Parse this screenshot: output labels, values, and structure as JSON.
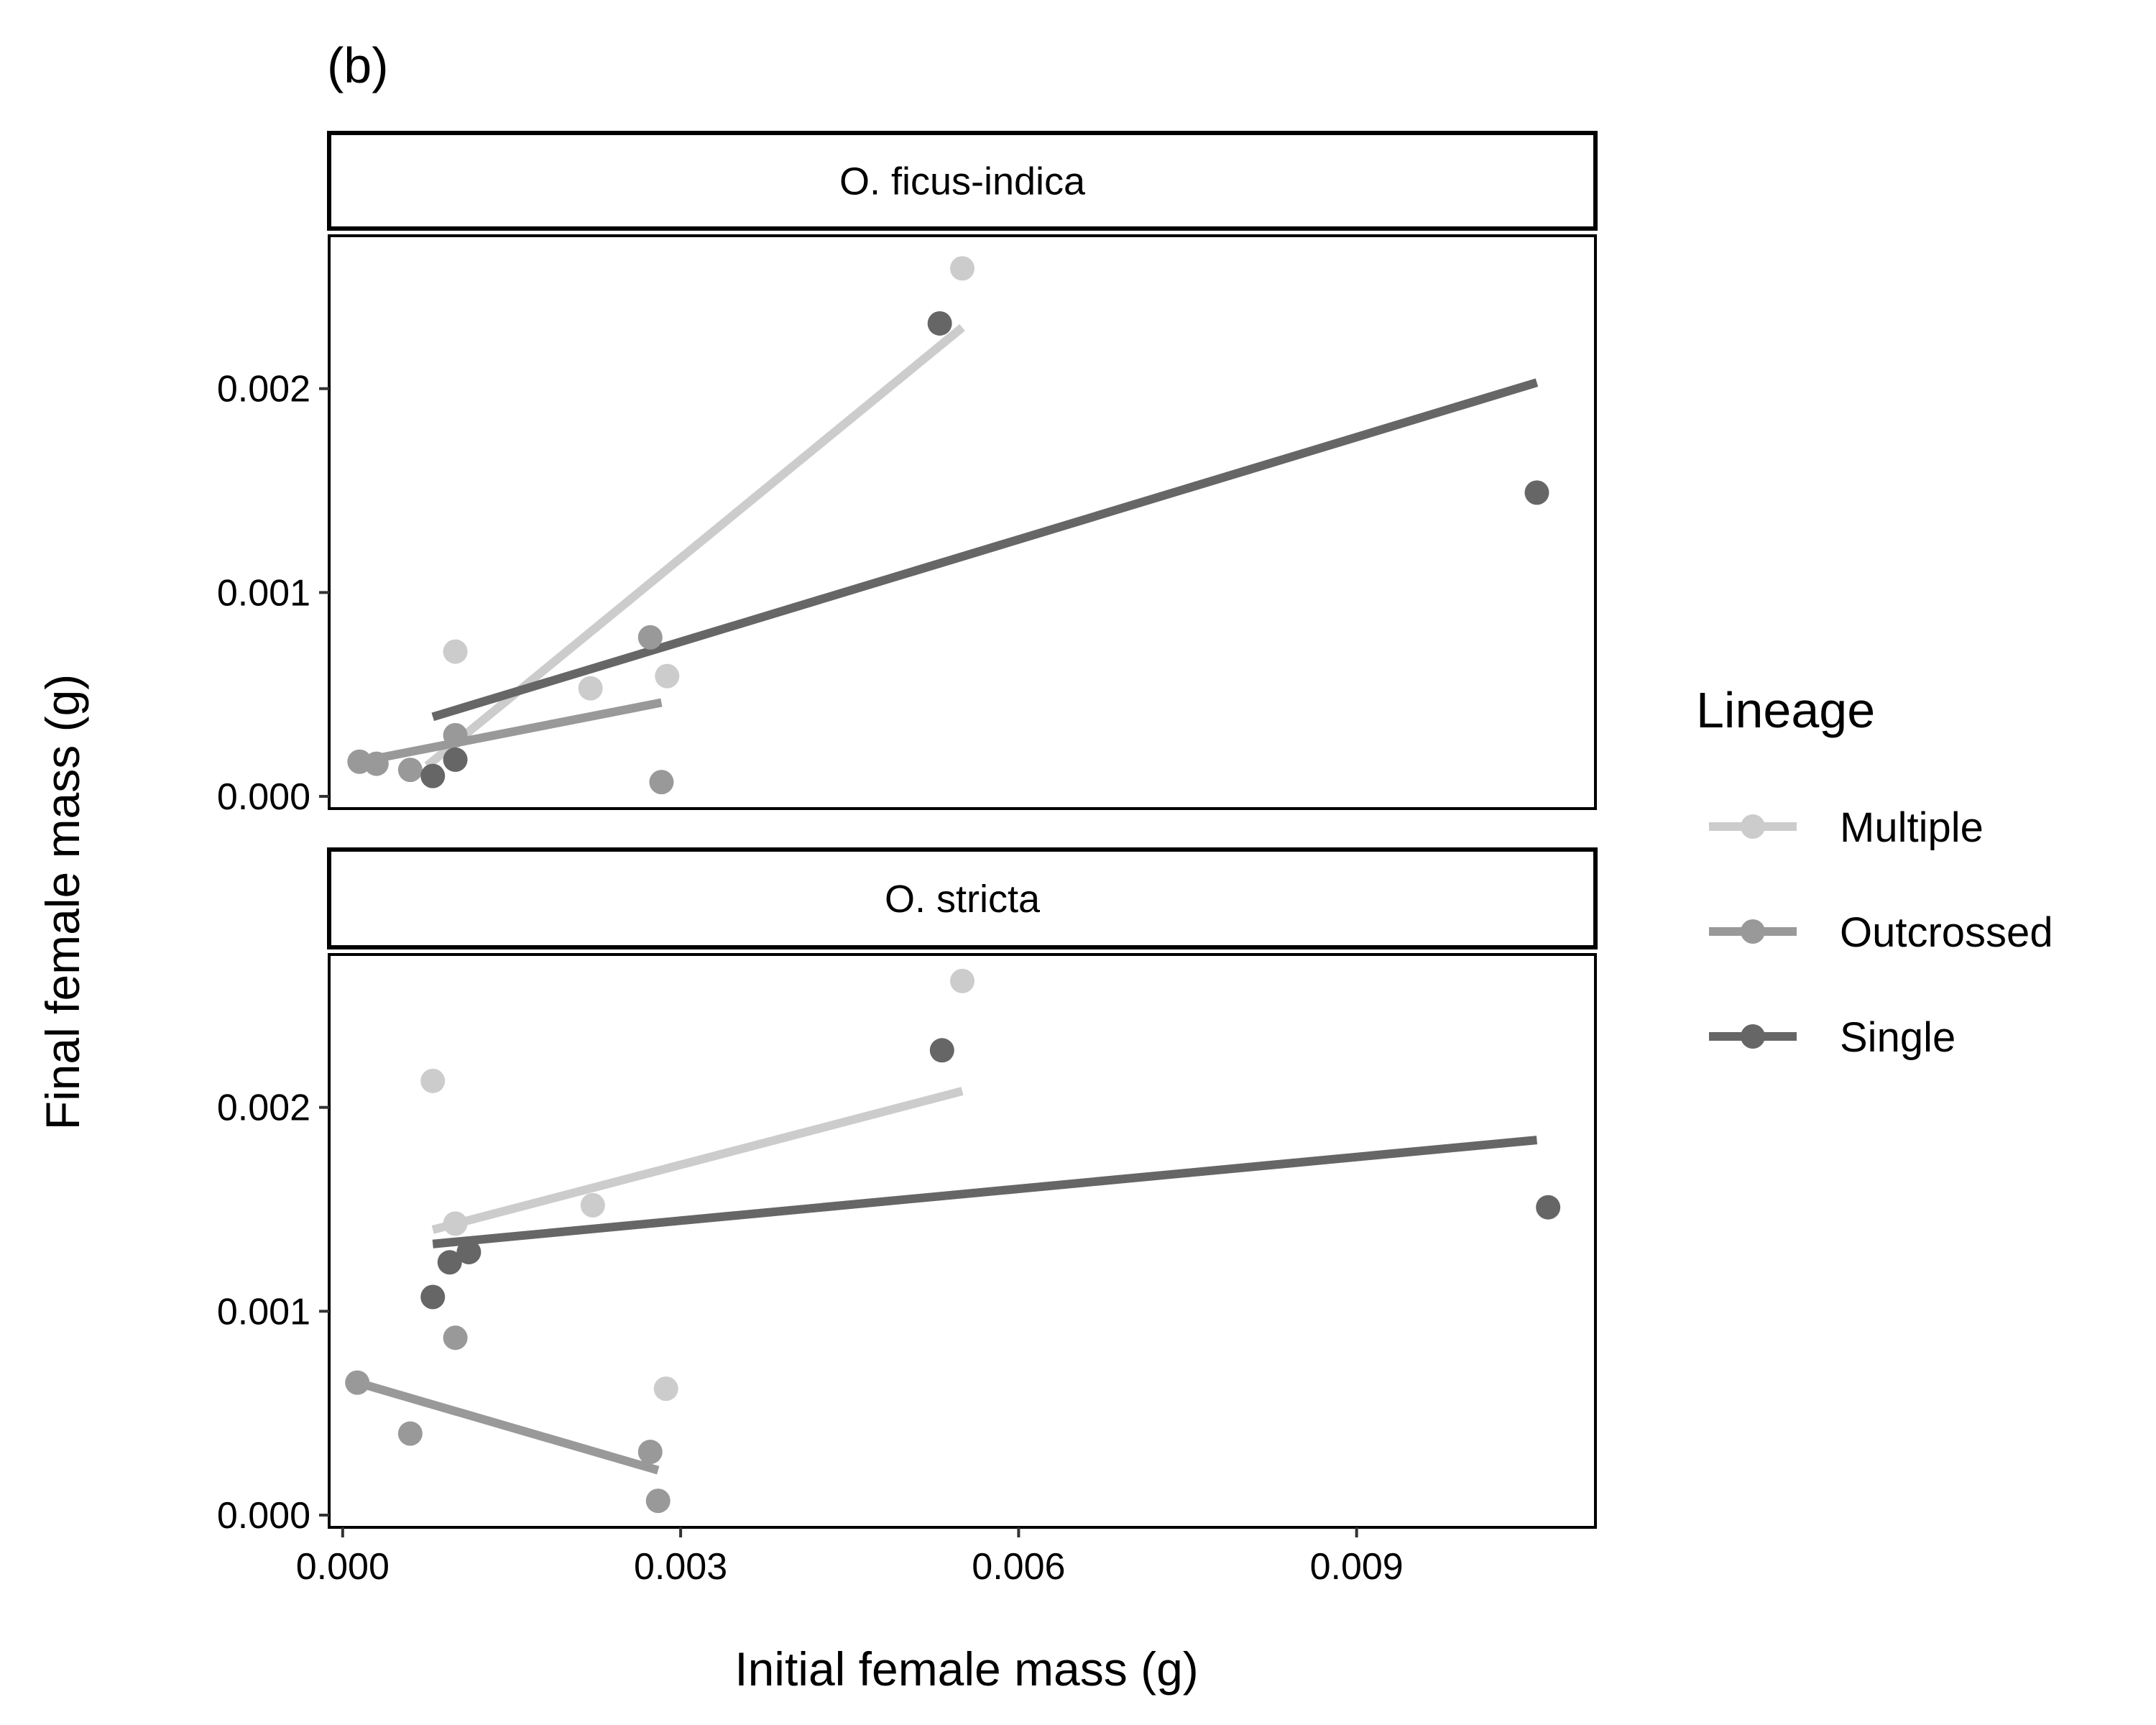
{
  "chart_data": {
    "type": "scatter",
    "tag": "(b)",
    "xlabel": "Initial female mass (g)",
    "ylabel": "Final female mass (g)",
    "xlim": [
      -0.00012,
      0.01112
    ],
    "ylim": [
      -6e-05,
      0.00275
    ],
    "xticks": [
      0.0,
      0.003,
      0.006,
      0.009
    ],
    "xtick_labels": [
      "0.000",
      "0.003",
      "0.006",
      "0.009"
    ],
    "yticks": [
      0.0,
      0.001,
      0.002
    ],
    "ytick_labels": [
      "0.000",
      "0.001",
      "0.002"
    ],
    "grid": false,
    "legend": {
      "title": "Lineage",
      "position": "right",
      "items": [
        {
          "label": "Multiple",
          "color": "#cccccc"
        },
        {
          "label": "Outcrossed",
          "color": "#999999"
        },
        {
          "label": "Single",
          "color": "#666666"
        }
      ]
    },
    "panels": [
      {
        "strip": "O. ficus-indica",
        "series": [
          {
            "name": "Multiple",
            "color": "#cccccc",
            "points": [
              [
                0.001,
                0.00071
              ],
              [
                0.0022,
                0.00053
              ],
              [
                0.00288,
                0.00059
              ],
              [
                0.0055,
                0.00259
              ]
            ],
            "fit": [
              [
                0.00075,
                0.00015
              ],
              [
                0.0055,
                0.0023
              ]
            ]
          },
          {
            "name": "Outcrossed",
            "color": "#999999",
            "points": [
              [
                0.00015,
                0.00017
              ],
              [
                0.0003,
                0.00016
              ],
              [
                0.0006,
                0.00013
              ],
              [
                0.001,
                0.0003
              ],
              [
                0.00273,
                0.00078
              ],
              [
                0.00283,
                7e-05
              ]
            ],
            "fit": [
              [
                0.00015,
                0.00017
              ],
              [
                0.00283,
                0.00046
              ]
            ]
          },
          {
            "name": "Single",
            "color": "#666666",
            "points": [
              [
                0.0008,
                0.0001
              ],
              [
                0.001,
                0.00018
              ],
              [
                0.0053,
                0.00232
              ],
              [
                0.0106,
                0.00149
              ]
            ],
            "fit": [
              [
                0.0008,
                0.00039
              ],
              [
                0.0106,
                0.00203
              ]
            ]
          }
        ]
      },
      {
        "strip": "O. stricta",
        "series": [
          {
            "name": "Multiple",
            "color": "#cccccc",
            "points": [
              [
                0.0008,
                0.00213
              ],
              [
                0.001,
                0.00143
              ],
              [
                0.00222,
                0.00152
              ],
              [
                0.00287,
                0.00062
              ],
              [
                0.0055,
                0.00262
              ]
            ],
            "fit": [
              [
                0.0008,
                0.0014
              ],
              [
                0.0055,
                0.00208
              ]
            ]
          },
          {
            "name": "Outcrossed",
            "color": "#999999",
            "points": [
              [
                0.00013,
                0.00065
              ],
              [
                0.0006,
                0.0004
              ],
              [
                0.001,
                0.00087
              ],
              [
                0.00273,
                0.00031
              ],
              [
                0.0028,
                7e-05
              ]
            ],
            "fit": [
              [
                0.00013,
                0.00065
              ],
              [
                0.0028,
                0.00022
              ]
            ]
          },
          {
            "name": "Single",
            "color": "#666666",
            "points": [
              [
                0.0008,
                0.00107
              ],
              [
                0.00095,
                0.00124
              ],
              [
                0.00112,
                0.00129
              ],
              [
                0.00532,
                0.00228
              ],
              [
                0.0107,
                0.00151
              ]
            ],
            "fit": [
              [
                0.0008,
                0.00133
              ],
              [
                0.0106,
                0.00184
              ]
            ]
          }
        ]
      }
    ]
  }
}
